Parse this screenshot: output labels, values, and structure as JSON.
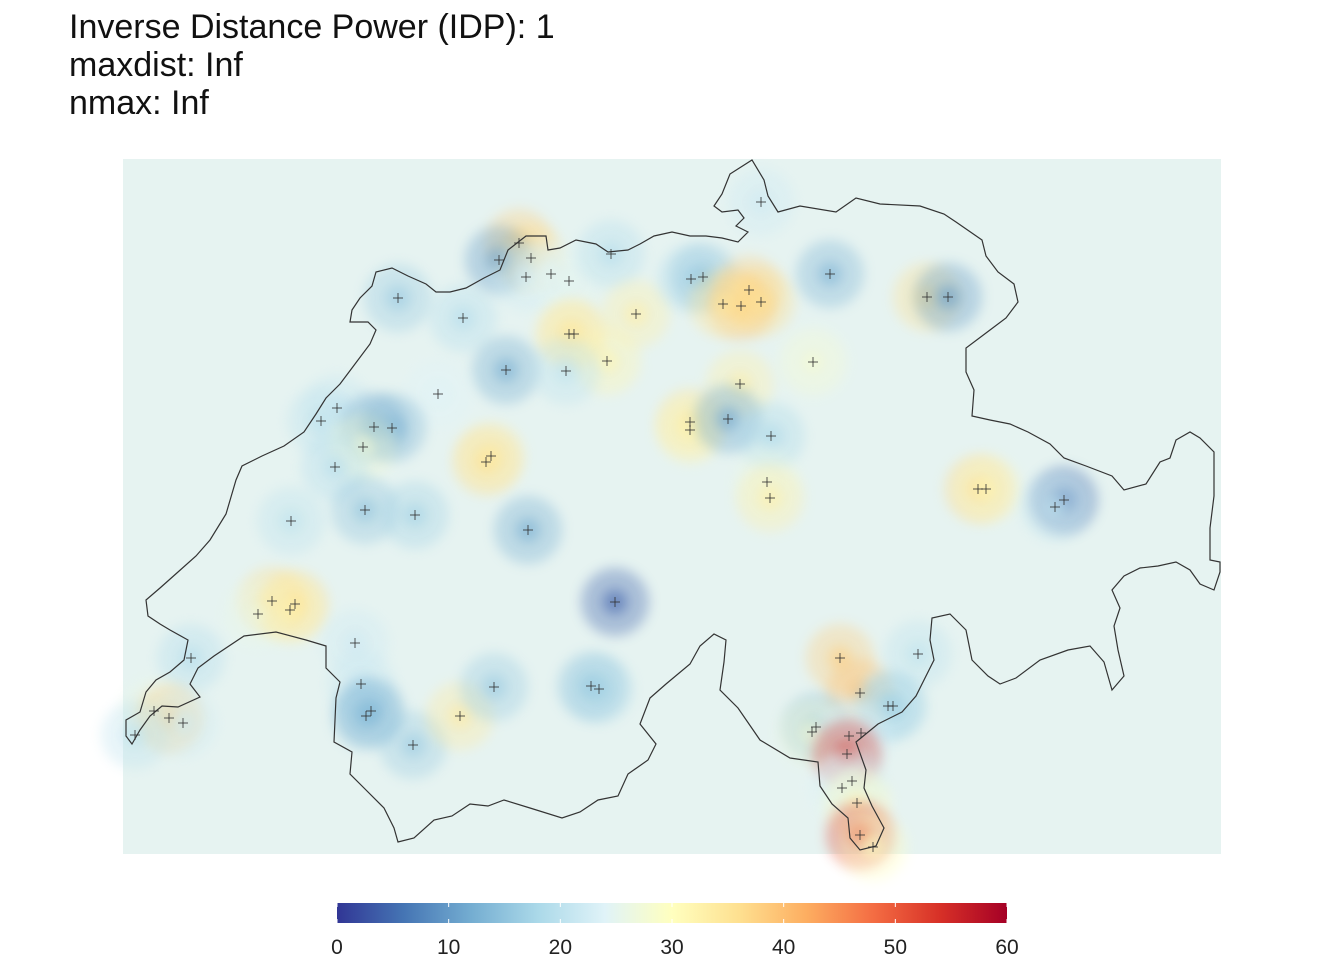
{
  "title": {
    "line1": "Inverse Distance Power (IDP): 1",
    "line2": "maxdist: Inf",
    "line3": "nmax: Inf"
  },
  "map": {
    "region": "Switzerland",
    "background_color": "#e4f1ef",
    "border_color": "#333333"
  },
  "legend": {
    "min": 0,
    "max": 60,
    "ticks": [
      0,
      10,
      20,
      30,
      40,
      50,
      60
    ],
    "palette": [
      "#313695",
      "#4575b4",
      "#74add1",
      "#abd9e9",
      "#e0f3f8",
      "#ffffbf",
      "#fee090",
      "#fdae61",
      "#f46d43",
      "#d73027",
      "#a50026"
    ]
  },
  "stations": [
    {
      "v": 38,
      "pos": [
        519,
        243
      ]
    },
    {
      "v": 36,
      "pos": [
        531,
        258
      ]
    },
    {
      "v": 10,
      "pos": [
        499,
        260
      ]
    },
    {
      "v": 22,
      "pos": [
        526,
        277
      ]
    },
    {
      "v": 24,
      "pos": [
        551,
        274
      ]
    },
    {
      "v": 25,
      "pos": [
        569,
        281
      ]
    },
    {
      "v": 19,
      "pos": [
        611,
        254
      ]
    },
    {
      "v": 16,
      "pos": [
        398,
        298
      ]
    },
    {
      "v": 19,
      "pos": [
        463,
        318
      ]
    },
    {
      "v": 34,
      "pos": [
        569,
        334
      ]
    },
    {
      "v": 34,
      "pos": [
        574,
        334
      ]
    },
    {
      "v": 33,
      "pos": [
        636,
        314
      ]
    },
    {
      "v": 32,
      "pos": [
        607,
        361
      ]
    },
    {
      "v": 12,
      "pos": [
        506,
        370
      ]
    },
    {
      "v": 20,
      "pos": [
        566,
        371
      ]
    },
    {
      "v": 19,
      "pos": [
        691,
        279
      ]
    },
    {
      "v": 15,
      "pos": [
        703,
        277
      ]
    },
    {
      "v": 40,
      "pos": [
        741,
        306
      ]
    },
    {
      "v": 38,
      "pos": [
        749,
        290
      ]
    },
    {
      "v": 36,
      "pos": [
        761,
        302
      ]
    },
    {
      "v": 35,
      "pos": [
        723,
        304
      ]
    },
    {
      "v": 13,
      "pos": [
        830,
        274
      ]
    },
    {
      "v": 36,
      "pos": [
        927,
        297
      ]
    },
    {
      "v": 10,
      "pos": [
        948,
        297
      ]
    },
    {
      "v": 22,
      "pos": [
        761,
        202
      ]
    },
    {
      "v": 28,
      "pos": [
        813,
        362
      ]
    },
    {
      "v": 33,
      "pos": [
        740,
        384
      ]
    },
    {
      "v": 35,
      "pos": [
        690,
        422
      ]
    },
    {
      "v": 32,
      "pos": [
        690,
        430
      ]
    },
    {
      "v": 11,
      "pos": [
        728,
        419
      ]
    },
    {
      "v": 18,
      "pos": [
        771,
        436
      ]
    },
    {
      "v": 26,
      "pos": [
        767,
        482
      ]
    },
    {
      "v": 33,
      "pos": [
        770,
        498
      ]
    },
    {
      "v": 24,
      "pos": [
        438,
        394
      ]
    },
    {
      "v": 21,
      "pos": [
        337,
        408
      ]
    },
    {
      "v": 20,
      "pos": [
        321,
        421
      ]
    },
    {
      "v": 11,
      "pos": [
        374,
        427
      ]
    },
    {
      "v": 13,
      "pos": [
        392,
        428
      ]
    },
    {
      "v": 28,
      "pos": [
        363,
        447
      ]
    },
    {
      "v": 36,
      "pos": [
        486,
        462
      ]
    },
    {
      "v": 34,
      "pos": [
        491,
        456
      ]
    },
    {
      "v": 19,
      "pos": [
        335,
        467
      ]
    },
    {
      "v": 15,
      "pos": [
        365,
        510
      ]
    },
    {
      "v": 17,
      "pos": [
        415,
        515
      ]
    },
    {
      "v": 20,
      "pos": [
        291,
        521
      ]
    },
    {
      "v": 12,
      "pos": [
        528,
        530
      ]
    },
    {
      "v": 4,
      "pos": [
        615,
        602
      ]
    },
    {
      "v": 36,
      "pos": [
        272,
        601
      ]
    },
    {
      "v": 36,
      "pos": [
        295,
        604
      ]
    },
    {
      "v": 26,
      "pos": [
        258,
        614
      ]
    },
    {
      "v": 33,
      "pos": [
        290,
        610
      ]
    },
    {
      "v": 19,
      "pos": [
        191,
        658
      ]
    },
    {
      "v": 22,
      "pos": [
        355,
        643
      ]
    },
    {
      "v": 21,
      "pos": [
        361,
        684
      ]
    },
    {
      "v": 13,
      "pos": [
        371,
        711
      ]
    },
    {
      "v": 14,
      "pos": [
        366,
        716
      ]
    },
    {
      "v": 16,
      "pos": [
        413,
        745
      ]
    },
    {
      "v": 34,
      "pos": [
        460,
        716
      ]
    },
    {
      "v": 16,
      "pos": [
        494,
        687
      ]
    },
    {
      "v": 15,
      "pos": [
        591,
        686
      ]
    },
    {
      "v": 17,
      "pos": [
        599,
        689
      ]
    },
    {
      "v": 26,
      "pos": [
        154,
        711
      ]
    },
    {
      "v": 38,
      "pos": [
        169,
        718
      ]
    },
    {
      "v": 22,
      "pos": [
        183,
        723
      ]
    },
    {
      "v": 20,
      "pos": [
        135,
        735
      ]
    },
    {
      "v": 37,
      "pos": [
        978,
        489
      ]
    },
    {
      "v": 32,
      "pos": [
        986,
        489
      ]
    },
    {
      "v": 5,
      "pos": [
        1064,
        500
      ]
    },
    {
      "v": 20,
      "pos": [
        1055,
        507
      ]
    },
    {
      "v": 38,
      "pos": [
        840,
        658
      ]
    },
    {
      "v": 40,
      "pos": [
        860,
        693
      ]
    },
    {
      "v": 20,
      "pos": [
        918,
        654
      ]
    },
    {
      "v": 18,
      "pos": [
        888,
        706
      ]
    },
    {
      "v": 17,
      "pos": [
        893,
        706
      ]
    },
    {
      "v": 13,
      "pos": [
        816,
        727
      ]
    },
    {
      "v": 28,
      "pos": [
        812,
        732
      ]
    },
    {
      "v": 24,
      "pos": [
        849,
        736
      ]
    },
    {
      "v": 22,
      "pos": [
        861,
        733
      ]
    },
    {
      "v": 54,
      "pos": [
        847,
        754
      ]
    },
    {
      "v": 22,
      "pos": [
        852,
        781
      ]
    },
    {
      "v": 24,
      "pos": [
        842,
        788
      ]
    },
    {
      "v": 30,
      "pos": [
        857,
        803
      ]
    },
    {
      "v": 52,
      "pos": [
        860,
        835
      ]
    },
    {
      "v": 30,
      "pos": [
        873,
        847
      ]
    }
  ]
}
